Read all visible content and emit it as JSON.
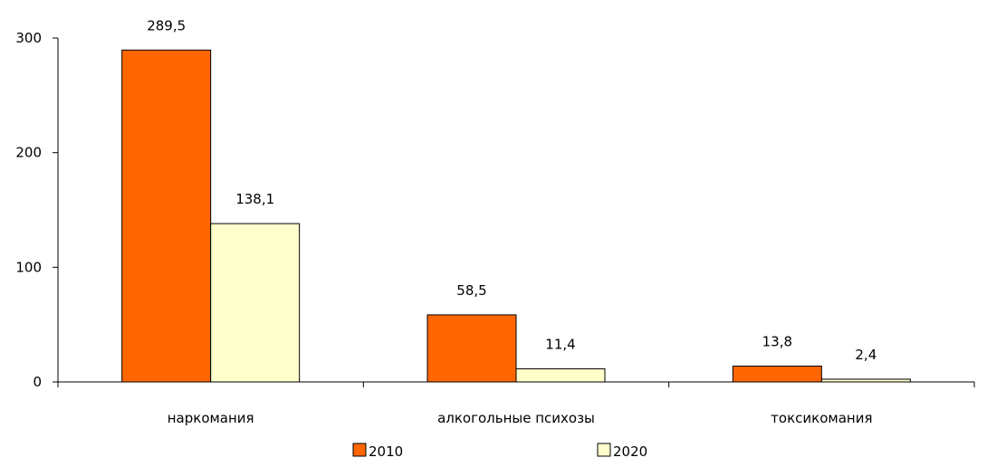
{
  "chart_data": {
    "type": "bar",
    "categories": [
      "наркомания",
      "алкогольные психозы",
      "токсикомания"
    ],
    "series": [
      {
        "name": "2010",
        "values": [
          289.5,
          58.5,
          13.8
        ],
        "labels": [
          "289,5",
          "58,5",
          "13,8"
        ],
        "color": "#ff6600"
      },
      {
        "name": "2020",
        "values": [
          138.1,
          11.4,
          2.4
        ],
        "labels": [
          "138,1",
          "11,4",
          "2,4"
        ],
        "color": "#ffffcc"
      }
    ],
    "yticks": [
      0,
      100,
      200,
      300
    ],
    "ytick_labels": [
      "0",
      "100",
      "200",
      "300"
    ],
    "ylim": [
      0,
      300
    ],
    "grid": false,
    "legend_position": "bottom"
  }
}
